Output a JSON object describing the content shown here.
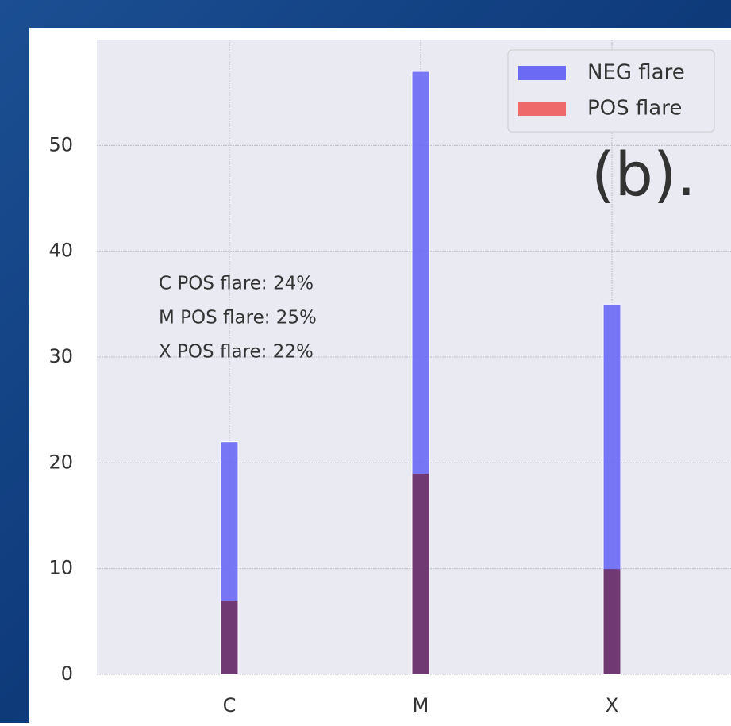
{
  "chart_data": {
    "type": "bar",
    "panel_label": "(b).",
    "categories": [
      "C",
      "M",
      "X"
    ],
    "series": [
      {
        "name": "NEG flare",
        "color": "#6a6af5",
        "values": [
          22,
          57,
          35
        ]
      },
      {
        "name": "POS flare",
        "color": "#ee6a6a",
        "values": [
          7,
          19,
          10
        ]
      }
    ],
    "annotations": [
      "C POS flare: 24%",
      "M POS flare: 25%",
      "X POS flare: 22%"
    ],
    "ylim": [
      0,
      60
    ],
    "yticks": [
      0,
      10,
      20,
      30,
      40,
      50
    ],
    "grid": true,
    "legend": "upper right"
  }
}
